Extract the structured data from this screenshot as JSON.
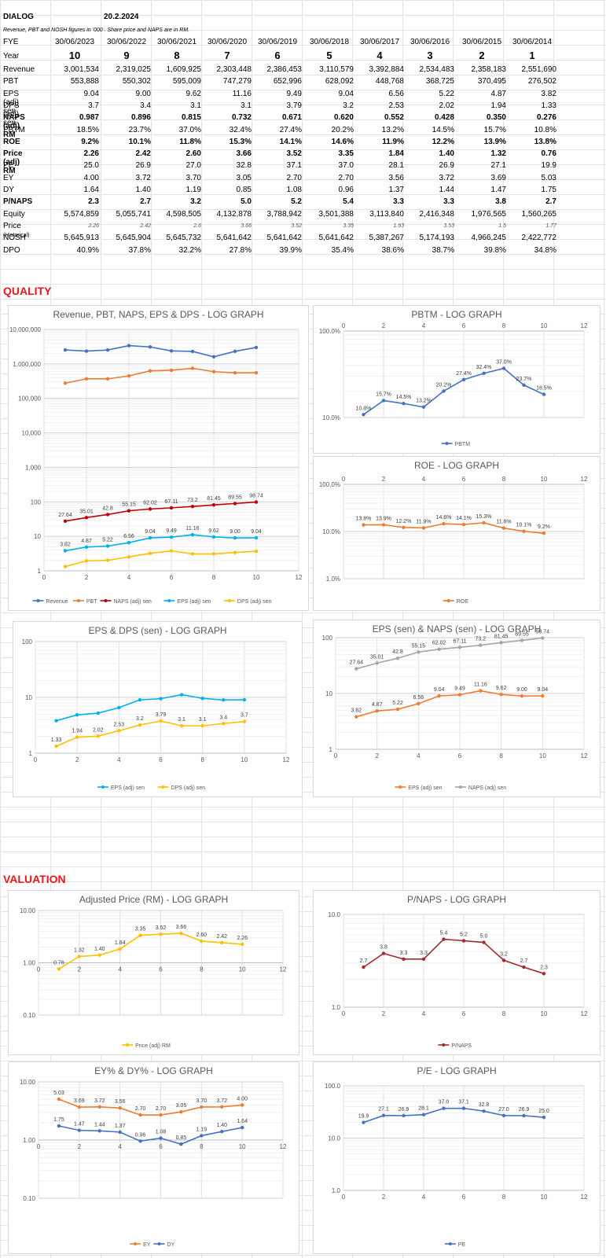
{
  "header": {
    "company": "DIALOG",
    "date": "20.2.2024",
    "note": "Revenue, PBT and  NOSH  figures in '000 .  Share price  and NAPS are in  RM."
  },
  "table": {
    "columns_label": "FYE",
    "columns": [
      "30/06/2023",
      "30/06/2022",
      "30/06/2021",
      "30/06/2020",
      "30/06/2019",
      "30/06/2018",
      "30/06/2017",
      "30/06/2016",
      "30/06/2015",
      "30/06/2014"
    ],
    "rows": [
      {
        "label": "Year",
        "style": "big",
        "values": [
          "10",
          "9",
          "8",
          "7",
          "6",
          "5",
          "4",
          "3",
          "2",
          "1"
        ]
      },
      {
        "label": "Revenue",
        "style": "",
        "values": [
          "3,001,534",
          "2,319,025",
          "1,609,925",
          "2,303,448",
          "2,386,453",
          "3,110,579",
          "3,392,884",
          "2,534,483",
          "2,358,183",
          "2,551,690"
        ]
      },
      {
        "label": "PBT",
        "style": "",
        "values": [
          "553,888",
          "550,302",
          "595,009",
          "747,279",
          "652,996",
          "628,092",
          "448,768",
          "368,725",
          "370,495",
          "276,502"
        ]
      },
      {
        "label": "EPS (adj) sen",
        "style": "",
        "values": [
          "9.04",
          "9.00",
          "9.62",
          "11.16",
          "9.49",
          "9.04",
          "6.56",
          "5.22",
          "4.87",
          "3.82"
        ]
      },
      {
        "label": "DPS (adj) sen",
        "style": "",
        "values": [
          "3.7",
          "3.4",
          "3.1",
          "3.1",
          "3.79",
          "3.2",
          "2.53",
          "2.02",
          "1.94",
          "1.33"
        ]
      },
      {
        "label": "NAPS (adj) RM",
        "style": "bold",
        "values": [
          "0.987",
          "0.896",
          "0.815",
          "0.732",
          "0.671",
          "0.620",
          "0.552",
          "0.428",
          "0.350",
          "0.276"
        ]
      },
      {
        "label": "PBTM",
        "style": "",
        "values": [
          "18.5%",
          "23.7%",
          "37.0%",
          "32.4%",
          "27.4%",
          "20.2%",
          "13.2%",
          "14.5%",
          "15.7%",
          "10.8%"
        ]
      },
      {
        "label": "ROE",
        "style": "bold",
        "values": [
          "9.2%",
          "10.1%",
          "11.8%",
          "15.3%",
          "14.1%",
          "14.6%",
          "11.9%",
          "12.2%",
          "13.9%",
          "13.8%"
        ]
      },
      {
        "label": "Price (adj) RM",
        "style": "bold",
        "values": [
          "2.26",
          "2.42",
          "2.60",
          "3.66",
          "3.52",
          "3.35",
          "1.84",
          "1.40",
          "1.32",
          "0.76"
        ]
      },
      {
        "label": "PE",
        "style": "",
        "values": [
          "25.0",
          "26.9",
          "27.0",
          "32.8",
          "37.1",
          "37.0",
          "28.1",
          "26.9",
          "27.1",
          "19.9"
        ]
      },
      {
        "label": "EY",
        "style": "",
        "values": [
          "4.00",
          "3.72",
          "3.70",
          "3.05",
          "2.70",
          "2.70",
          "3.56",
          "3.72",
          "3.69",
          "5.03"
        ]
      },
      {
        "label": "DY",
        "style": "",
        "values": [
          "1.64",
          "1.40",
          "1.19",
          "0.85",
          "1.08",
          "0.96",
          "1.37",
          "1.44",
          "1.47",
          "1.75"
        ]
      },
      {
        "label": "P/NAPS",
        "style": "bold",
        "values": [
          "2.3",
          "2.7",
          "3.2",
          "5.0",
          "5.2",
          "5.4",
          "3.3",
          "3.3",
          "3.8",
          "2.7"
        ]
      },
      {
        "label": "Equity",
        "style": "",
        "values": [
          "5,574,859",
          "5,055,741",
          "4,598,505",
          "4,132,878",
          "3,788,942",
          "3,501,388",
          "3,113,840",
          "2,416,348",
          "1,976,565",
          "1,560,265"
        ]
      },
      {
        "label": "Price",
        "label_suffix": "(Historical)",
        "style": "ital",
        "values": [
          "2.26",
          "2.42",
          "2.6",
          "3.66",
          "3.52",
          "3.35",
          "1.93",
          "3.53",
          "1.5",
          "1.77"
        ]
      },
      {
        "label": "NOSH",
        "style": "",
        "values": [
          "5,645,913",
          "5,645,904",
          "5,645,732",
          "5,641,642",
          "5,641,642",
          "5,641,642",
          "5,387,267",
          "5,174,193",
          "4,966,245",
          "2,422,772"
        ]
      },
      {
        "label": "DPO",
        "style": "",
        "values": [
          "40.9%",
          "37.8%",
          "32.2%",
          "27.8%",
          "39.9%",
          "35.4%",
          "38.6%",
          "38.7%",
          "39.8%",
          "34.8%"
        ]
      }
    ]
  },
  "sections": {
    "quality": "QUALITY",
    "valuation": "VALUATION"
  },
  "colors": {
    "blue": "#4472c4",
    "orange": "#ed7d31",
    "gray": "#a5a5a5",
    "yellow": "#ffc000",
    "red": "#c00000",
    "cyan": "#5bc0de",
    "darkred": "#a52a2a"
  },
  "chart_data": [
    {
      "id": "c1",
      "type": "line",
      "title": "Revenue,  PBT, NAPS, EPS & DPS - LOG GRAPH",
      "x": [
        1,
        2,
        3,
        4,
        5,
        6,
        7,
        8,
        9,
        10
      ],
      "xticks": [
        "0",
        "2",
        "4",
        "6",
        "8",
        "10",
        "12"
      ],
      "xlim": [
        0,
        12
      ],
      "ylim": [
        1,
        10000000
      ],
      "yscale": "log",
      "yticks": [
        "1",
        "10",
        "100",
        "1,000",
        "10,000",
        "100,000",
        "1,000,000",
        "10,000,000"
      ],
      "series": [
        {
          "name": "Revenue",
          "color": "#4472c4",
          "values": [
            2551690,
            2358183,
            2534483,
            3392884,
            3110579,
            2386453,
            2303448,
            1609925,
            2319025,
            3001534
          ]
        },
        {
          "name": "PBT",
          "color": "#ed7d31",
          "values": [
            276502,
            370495,
            368725,
            448768,
            628092,
            652996,
            747279,
            595009,
            550302,
            553888
          ]
        },
        {
          "name": "NAPS (adj) sen",
          "color": "#c00000",
          "values": [
            27.64,
            35.01,
            42.8,
            55.15,
            62.02,
            67.11,
            73.2,
            81.45,
            89.55,
            98.74
          ],
          "labels": [
            "27.64",
            "35.01",
            "42.8",
            "55.15",
            "62.02",
            "67.11",
            "73.2",
            "81.45",
            "89.55",
            "98.74"
          ]
        },
        {
          "name": "EPS (adj) sen",
          "color": "#00b0f0",
          "values": [
            3.82,
            4.87,
            5.22,
            6.56,
            9.04,
            9.49,
            11.16,
            9.62,
            9.0,
            9.04
          ],
          "labels": [
            "3.82",
            "4.87",
            "5.22",
            "6.56",
            "9.04",
            "9.49",
            "11.16",
            "9.62",
            "9.00",
            "9.04"
          ]
        },
        {
          "name": "DPS (adj) sen",
          "color": "#ffc000",
          "values": [
            1.33,
            1.94,
            2.02,
            2.53,
            3.2,
            3.79,
            3.1,
            3.1,
            3.4,
            3.7
          ]
        }
      ]
    },
    {
      "id": "c2",
      "type": "line",
      "title": "PBTM - LOG GRAPH",
      "x": [
        1,
        2,
        3,
        4,
        5,
        6,
        7,
        8,
        9,
        10
      ],
      "xticks": [
        "0",
        "2",
        "4",
        "6",
        "8",
        "10",
        "12"
      ],
      "xlim": [
        0,
        12
      ],
      "ylim": [
        10,
        100
      ],
      "yscale": "log",
      "yticks": [
        "10.0%",
        "100.0%"
      ],
      "xaxis_top": true,
      "series": [
        {
          "name": "PBTM",
          "color": "#4472c4",
          "values": [
            10.8,
            15.7,
            14.5,
            13.2,
            20.2,
            27.4,
            32.4,
            37.0,
            23.7,
            18.5
          ],
          "labels": [
            "10.8%",
            "15.7%",
            "14.5%",
            "13.2%",
            "20.2%",
            "27.4%",
            "32.4%",
            "37.0%",
            "23.7%",
            "18.5%"
          ]
        }
      ]
    },
    {
      "id": "c3",
      "type": "line",
      "title": "ROE - LOG GRAPH",
      "x": [
        1,
        2,
        3,
        4,
        5,
        6,
        7,
        8,
        9,
        10
      ],
      "xticks": [
        "0",
        "2",
        "4",
        "6",
        "8",
        "10",
        "12"
      ],
      "xlim": [
        0,
        12
      ],
      "ylim": [
        1,
        100
      ],
      "yscale": "log",
      "yticks": [
        "1.0%",
        "10.0%",
        "100.0%"
      ],
      "xaxis_top": true,
      "series": [
        {
          "name": "ROE",
          "color": "#ed7d31",
          "values": [
            13.8,
            13.9,
            12.2,
            11.9,
            14.6,
            14.1,
            15.3,
            11.8,
            10.1,
            9.2
          ],
          "labels": [
            "13.8%",
            "13.9%",
            "12.2%",
            "11.9%",
            "14.6%",
            "14.1%",
            "15.3%",
            "11.8%",
            "10.1%",
            "9.2%"
          ]
        }
      ]
    },
    {
      "id": "c4",
      "type": "line",
      "title": "EPS & DPS (sen) - LOG GRAPH",
      "x": [
        1,
        2,
        3,
        4,
        5,
        6,
        7,
        8,
        9,
        10
      ],
      "xticks": [
        "0",
        "2",
        "4",
        "6",
        "8",
        "10",
        "12"
      ],
      "xlim": [
        0,
        12
      ],
      "ylim": [
        1,
        100
      ],
      "yscale": "log",
      "yticks": [
        "1",
        "10",
        "100"
      ],
      "series": [
        {
          "name": "EPS (adj) sen",
          "color": "#00b0f0",
          "values": [
            3.82,
            4.87,
            5.22,
            6.56,
            9.04,
            9.49,
            11.16,
            9.62,
            9.0,
            9.04
          ]
        },
        {
          "name": "DPS (adj) sen",
          "color": "#ffc000",
          "values": [
            1.33,
            1.94,
            2.02,
            2.53,
            3.2,
            3.79,
            3.1,
            3.1,
            3.4,
            3.7
          ],
          "labels": [
            "1.33",
            "1.94",
            "2.02",
            "2.53",
            "3.2",
            "3.79",
            "3.1",
            "3.1",
            "3.4",
            "3.7"
          ]
        }
      ]
    },
    {
      "id": "c5",
      "type": "line",
      "title": "EPS (sen) & NAPS (sen) - LOG GRAPH",
      "x": [
        1,
        2,
        3,
        4,
        5,
        6,
        7,
        8,
        9,
        10
      ],
      "xticks": [
        "0",
        "2",
        "4",
        "6",
        "8",
        "10",
        "12"
      ],
      "xlim": [
        0,
        12
      ],
      "ylim": [
        1,
        100
      ],
      "yscale": "log",
      "yticks": [
        "1",
        "10",
        "100"
      ],
      "series": [
        {
          "name": "EPS (adj) sen",
          "color": "#ed7d31",
          "values": [
            3.82,
            4.87,
            5.22,
            6.56,
            9.04,
            9.49,
            11.16,
            9.62,
            9.0,
            9.04
          ],
          "labels": [
            "3.82",
            "4.87",
            "5.22",
            "6.56",
            "9.04",
            "9.49",
            "11.16",
            "9.62",
            "9.00",
            "9.04"
          ]
        },
        {
          "name": "NAPS (adj) sen",
          "color": "#a5a5a5",
          "values": [
            27.64,
            35.01,
            42.8,
            55.15,
            62.02,
            67.11,
            73.2,
            81.45,
            89.55,
            98.74
          ],
          "labels": [
            "27.64",
            "35.01",
            "42.8",
            "55.15",
            "62.02",
            "67.11",
            "73.2",
            "81.45",
            "89.55",
            "98.74"
          ]
        }
      ]
    },
    {
      "id": "c6",
      "type": "line",
      "title": "Adjusted Price (RM) - LOG GRAPH",
      "x": [
        1,
        2,
        3,
        4,
        5,
        6,
        7,
        8,
        9,
        10
      ],
      "xticks": [
        "0",
        "2",
        "4",
        "6",
        "8",
        "10",
        "12"
      ],
      "xlim": [
        0,
        12
      ],
      "ylim": [
        0.1,
        10
      ],
      "yscale": "log",
      "yticks": [
        "0.10",
        "1.00",
        "10.00"
      ],
      "xaxis_at": 1,
      "series": [
        {
          "name": "Price (adj) RM",
          "color": "#ffc000",
          "values": [
            0.76,
            1.32,
            1.4,
            1.84,
            3.35,
            3.52,
            3.66,
            2.6,
            2.42,
            2.26
          ],
          "labels": [
            "0.76",
            "1.32",
            "1.40",
            "1.84",
            "3.35",
            "3.52",
            "3.66",
            "2.60",
            "2.42",
            "2.26"
          ]
        }
      ]
    },
    {
      "id": "c7",
      "type": "line",
      "title": "P/NAPS - LOG GRAPH",
      "x": [
        1,
        2,
        3,
        4,
        5,
        6,
        7,
        8,
        9,
        10
      ],
      "xticks": [
        "0",
        "2",
        "4",
        "6",
        "8",
        "10",
        "12"
      ],
      "xlim": [
        0,
        12
      ],
      "ylim": [
        1,
        10
      ],
      "yscale": "log",
      "yticks": [
        "1.0",
        "10.0"
      ],
      "series": [
        {
          "name": "P/NAPS",
          "color": "#a52a2a",
          "values": [
            2.7,
            3.8,
            3.3,
            3.3,
            5.4,
            5.2,
            5.0,
            3.2,
            2.7,
            2.3
          ],
          "labels": [
            "2.7",
            "3.8",
            "3.3",
            "3.3",
            "5.4",
            "5.2",
            "5.0",
            "3.2",
            "2.7",
            "2.3"
          ]
        }
      ]
    },
    {
      "id": "c8",
      "type": "line",
      "title": "EY% & DY% - LOG GRAPH",
      "x": [
        1,
        2,
        3,
        4,
        5,
        6,
        7,
        8,
        9,
        10
      ],
      "xticks": [
        "0",
        "2",
        "4",
        "6",
        "8",
        "10",
        "12"
      ],
      "xlim": [
        0,
        12
      ],
      "ylim": [
        0.1,
        10
      ],
      "yscale": "log",
      "yticks": [
        "0.10",
        "1.00",
        "10.00"
      ],
      "xaxis_at": 1,
      "series": [
        {
          "name": "EY",
          "color": "#ed7d31",
          "values": [
            5.03,
            3.69,
            3.72,
            3.56,
            2.7,
            2.7,
            3.05,
            3.7,
            3.72,
            4.0
          ],
          "labels": [
            "5.03",
            "3.69",
            "3.72",
            "3.56",
            "2.70",
            "2.70",
            "3.05",
            "3.70",
            "3.72",
            "4.00"
          ]
        },
        {
          "name": "DY",
          "color": "#4472c4",
          "values": [
            1.75,
            1.47,
            1.44,
            1.37,
            0.96,
            1.08,
            0.85,
            1.19,
            1.4,
            1.64
          ],
          "labels": [
            "1.75",
            "1.47",
            "1.44",
            "1.37",
            "0.96",
            "1.08",
            "0.85",
            "1.19",
            "1.40",
            "1.64"
          ]
        }
      ]
    },
    {
      "id": "c9",
      "type": "line",
      "title": "P/E - LOG GRAPH",
      "x": [
        1,
        2,
        3,
        4,
        5,
        6,
        7,
        8,
        9,
        10
      ],
      "xticks": [
        "0",
        "2",
        "4",
        "6",
        "8",
        "10",
        "12"
      ],
      "xlim": [
        0,
        12
      ],
      "ylim": [
        1,
        100
      ],
      "yscale": "log",
      "yticks": [
        "1.0",
        "10.0",
        "100.0"
      ],
      "series": [
        {
          "name": "PE",
          "color": "#4472c4",
          "values": [
            19.9,
            27.1,
            26.9,
            28.1,
            37.0,
            37.1,
            32.8,
            27.0,
            26.9,
            25.0
          ],
          "labels": [
            "19.9",
            "27.1",
            "26.9",
            "28.1",
            "37.0",
            "37.1",
            "32.8",
            "27.0",
            "26.9",
            "25.0"
          ]
        }
      ]
    }
  ]
}
